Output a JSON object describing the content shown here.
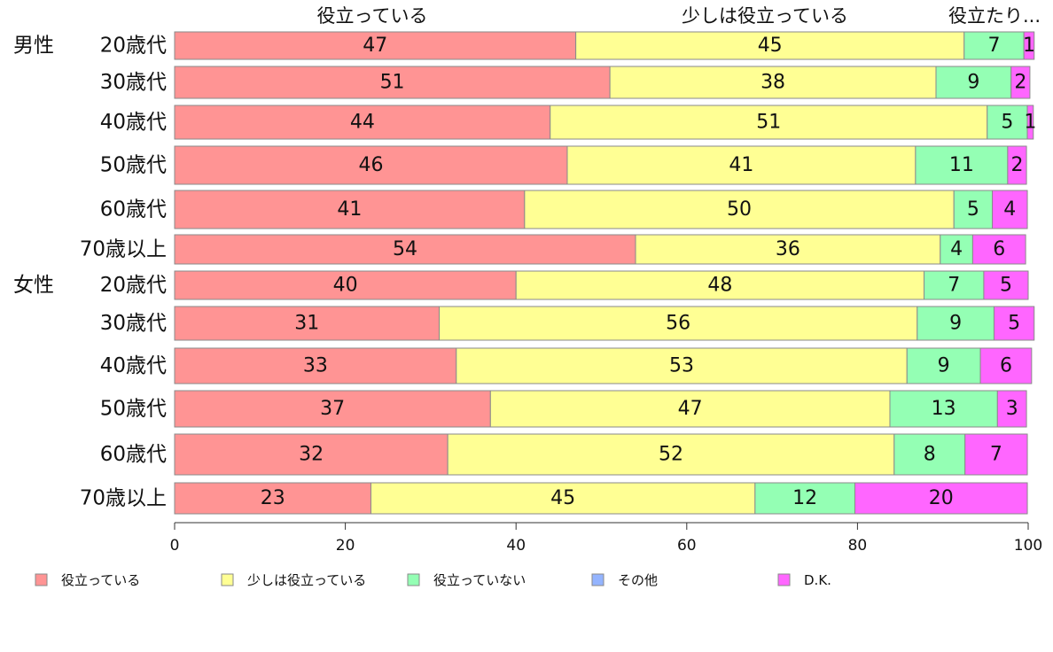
{
  "chart_data": {
    "type": "bar",
    "orientation": "horizontal",
    "stacked": true,
    "groups": [
      {
        "label": "男性",
        "start_index": 0
      },
      {
        "label": "女性",
        "start_index": 6
      }
    ],
    "categories": [
      "20歳代",
      "30歳代",
      "40歳代",
      "50歳代",
      "60歳代",
      "70歳以上",
      "20歳代",
      "30歳代",
      "40歳代",
      "50歳代",
      "60歳代",
      "70歳以上"
    ],
    "series": [
      {
        "name": "役立っている",
        "color": "#ff9494",
        "values": [
          47,
          51,
          44,
          46,
          41,
          54,
          40,
          31,
          33,
          37,
          32,
          23
        ],
        "labels": [
          47,
          51,
          44,
          46,
          41,
          54,
          40,
          31,
          33,
          37,
          32,
          23
        ]
      },
      {
        "name": "少しは役立っている",
        "color": "#ffff94",
        "values": [
          45.5,
          38.2,
          51.2,
          40.8,
          50.3,
          35.7,
          47.8,
          56,
          52.8,
          46.8,
          52.3,
          45
        ],
        "labels": [
          45,
          38,
          51,
          41,
          50,
          36,
          48,
          56,
          53,
          47,
          52,
          45
        ]
      },
      {
        "name": "役立っていない",
        "color": "#94ffb4",
        "values": [
          7,
          8.8,
          4.7,
          10.8,
          4.5,
          3.8,
          7,
          9,
          8.6,
          12.6,
          8.3,
          11.7
        ],
        "labels": [
          7,
          9,
          5,
          11,
          5,
          4,
          7,
          9,
          9,
          13,
          8,
          12
        ]
      },
      {
        "name": "その他",
        "color": "#94b4ff",
        "values": [
          0,
          0,
          0,
          0,
          0,
          0,
          0,
          0,
          0,
          0,
          0,
          0
        ],
        "labels": [
          null,
          null,
          null,
          null,
          null,
          null,
          null,
          null,
          null,
          null,
          null,
          null
        ]
      },
      {
        "name": "D.K.",
        "color": "#ff66ff",
        "values": [
          1.2,
          2.2,
          0.7,
          2.2,
          4.1,
          6.2,
          5.2,
          4.7,
          6,
          3.4,
          7.3,
          20.2
        ],
        "labels": [
          1,
          2,
          1,
          2,
          4,
          6,
          5,
          5,
          6,
          3,
          7,
          20
        ]
      }
    ],
    "top_labels": [
      "役立っている",
      "少しは役立っている",
      "役立たり..."
    ],
    "xlim": [
      0,
      100
    ],
    "xticks": [
      0,
      20,
      40,
      60,
      80,
      100
    ],
    "grid": false,
    "legend_position": "bottom"
  }
}
